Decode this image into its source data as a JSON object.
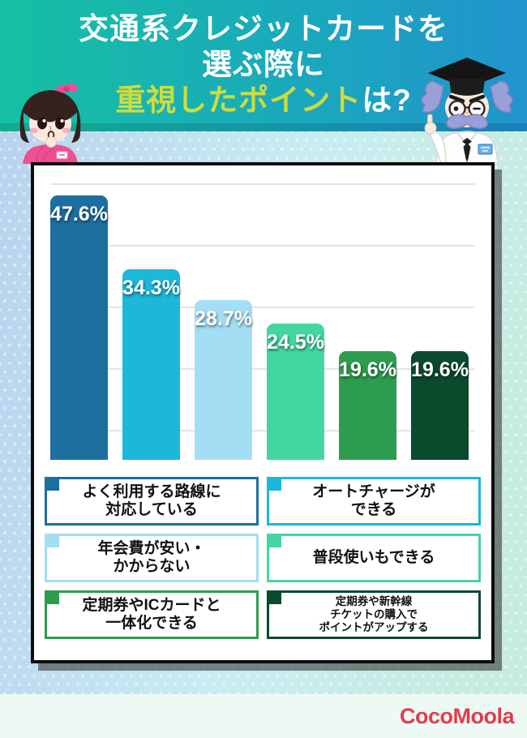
{
  "header": {
    "title_line1": "交通系クレジットカードを",
    "title_line2": "選ぶ際に",
    "title_line3_highlight": "重視したポイント",
    "title_line3_suffix": "は?",
    "highlight_color": "#cddc3e",
    "gradient_left": "#16c0a2",
    "gradient_right": "#2194cd"
  },
  "chart_data": {
    "type": "bar",
    "title": "交通系クレジットカードを選ぶ際に重視したポイントは?",
    "categories": [
      "よく利用する路線に対応している",
      "オートチャージができる",
      "年会費が安い・かからない",
      "普段使いもできる",
      "定期券やICカードと一体化できる",
      "定期券や新幹線チケットの購入でポイントがアップする"
    ],
    "values": [
      47.6,
      34.3,
      28.7,
      24.5,
      19.6,
      19.6
    ],
    "value_labels": [
      "47.6%",
      "34.3%",
      "28.7%",
      "24.5%",
      "19.6%",
      "19.6%"
    ],
    "bar_colors": [
      "#1d6fa0",
      "#1cb8d9",
      "#a4def5",
      "#43d6a0",
      "#2d9c4e",
      "#0c4a2e"
    ],
    "ylim": [
      0,
      50
    ],
    "grid": true,
    "legend_position": "below-two-columns"
  },
  "legend": {
    "items": [
      {
        "lines": [
          "よく利用する路線に",
          "対応している"
        ],
        "color": "#1d6fa0",
        "small": false
      },
      {
        "lines": [
          "オートチャージが",
          "できる"
        ],
        "color": "#1cb8d9",
        "small": false
      },
      {
        "lines": [
          "年会費が安い・",
          "かからない"
        ],
        "color": "#a4def5",
        "small": false
      },
      {
        "lines": [
          "普段使いもできる"
        ],
        "color": "#43d6a0",
        "small": false
      },
      {
        "lines": [
          "定期券やICカードと",
          "一体化できる"
        ],
        "color": "#2d9c4e",
        "small": false
      },
      {
        "lines": [
          "定期券や新幹線",
          "チケットの購入で",
          "ポイントがアップする"
        ],
        "color": "#0c4a2e",
        "small": true
      }
    ]
  },
  "footer": {
    "logo_text": "CocoMoola",
    "logo_color": "#e23c4d"
  },
  "characters": {
    "left": "girl-character",
    "right": "professor-character"
  }
}
